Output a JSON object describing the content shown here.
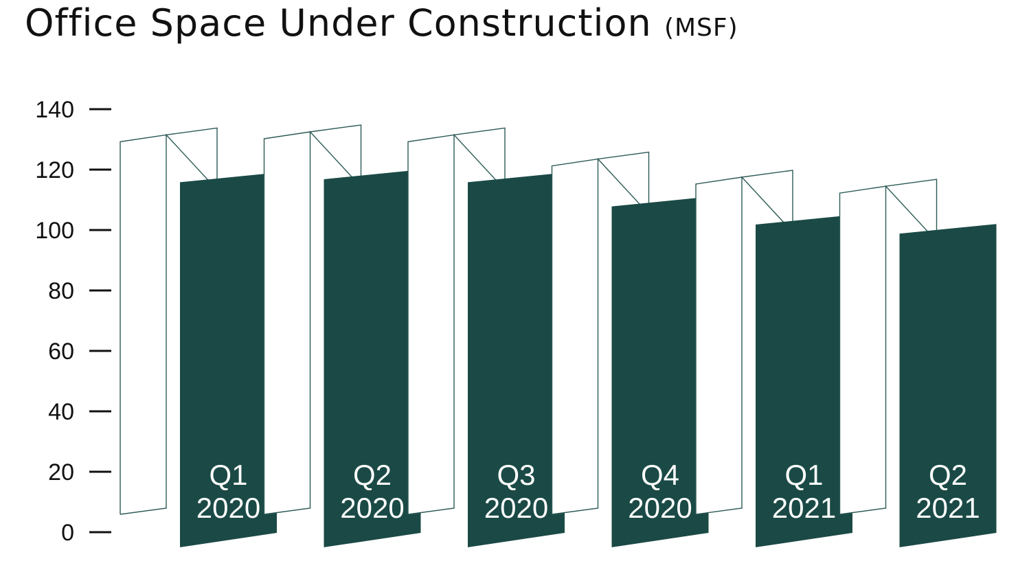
{
  "chart_data": {
    "type": "bar",
    "title": "Office Space Under Construction",
    "title_unit": "(MSF)",
    "categories": [
      {
        "quarter": "Q1",
        "year": "2020"
      },
      {
        "quarter": "Q2",
        "year": "2020"
      },
      {
        "quarter": "Q3",
        "year": "2020"
      },
      {
        "quarter": "Q4",
        "year": "2020"
      },
      {
        "quarter": "Q1",
        "year": "2021"
      },
      {
        "quarter": "Q2",
        "year": "2021"
      }
    ],
    "values": [
      119,
      120,
      119,
      111,
      105,
      102
    ],
    "yticks": [
      "0",
      "20",
      "40",
      "60",
      "80",
      "100",
      "120",
      "140"
    ],
    "ylim": [
      0,
      140
    ],
    "grid": false,
    "legend": "none",
    "colors": {
      "bar": "#1b4a46",
      "outline": "#2c5a56",
      "text": "#111111",
      "bar_text": "#ffffff"
    }
  }
}
